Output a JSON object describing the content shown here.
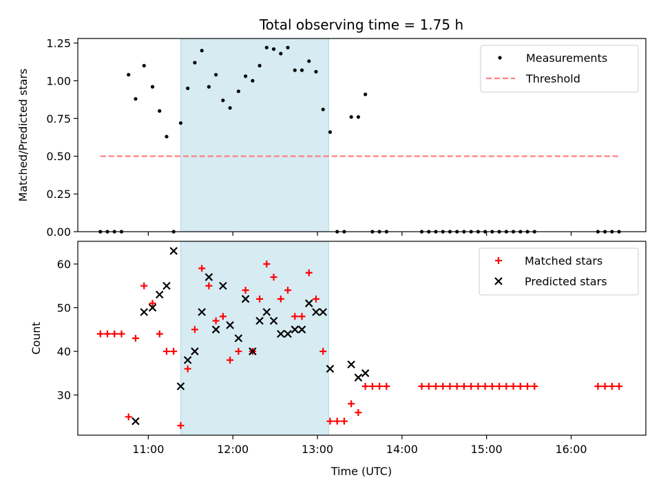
{
  "chart_data": {
    "title": "Total observing time = 1.75 h",
    "x_axis": {
      "label": "Time (UTC)",
      "range": [
        "10:10",
        "16:53"
      ],
      "ticks": [
        "11:00",
        "12:00",
        "13:00",
        "14:00",
        "15:00",
        "16:00"
      ]
    },
    "highlight": {
      "start": "11:23",
      "end": "13:08",
      "color": "#add8e6"
    },
    "panels": [
      {
        "type": "scatter",
        "ylabel": "Matched/Predicted stars",
        "ylim": [
          0,
          1.28
        ],
        "yticks": [
          "0.00",
          "0.25",
          "0.50",
          "0.75",
          "1.00",
          "1.25"
        ],
        "legend": {
          "position": "top-right"
        },
        "series": [
          {
            "name": "Measurements",
            "color": "#000000",
            "marker": "dot",
            "x": [
              "10:26",
              "10:31",
              "10:36",
              "10:41",
              "10:46",
              "10:51",
              "10:57",
              "11:03",
              "11:08",
              "11:13",
              "11:18",
              "11:23",
              "11:28",
              "11:33",
              "11:38",
              "11:43",
              "11:48",
              "11:53",
              "11:58",
              "12:04",
              "12:09",
              "12:14",
              "12:19",
              "12:24",
              "12:29",
              "12:34",
              "12:39",
              "12:44",
              "12:49",
              "12:54",
              "12:59",
              "13:04",
              "13:09",
              "13:14",
              "13:19",
              "13:24",
              "13:29",
              "13:34",
              "13:39",
              "13:44",
              "13:49",
              "14:14",
              "14:19",
              "14:24",
              "14:29",
              "14:34",
              "14:39",
              "14:44",
              "14:49",
              "14:54",
              "14:59",
              "15:04",
              "15:09",
              "15:14",
              "15:19",
              "15:24",
              "15:29",
              "15:34",
              "16:19",
              "16:24",
              "16:29",
              "16:34"
            ],
            "y": [
              0,
              0,
              0,
              0,
              1.04,
              0.88,
              1.1,
              0.96,
              0.8,
              0.63,
              0,
              0.72,
              0.95,
              1.12,
              1.2,
              0.96,
              1.04,
              0.87,
              0.82,
              0.93,
              1.03,
              1.0,
              1.1,
              1.22,
              1.21,
              1.18,
              1.22,
              1.07,
              1.07,
              1.13,
              1.06,
              0.81,
              0.66,
              0,
              0,
              0.76,
              0.76,
              0.91,
              0,
              0,
              0,
              0,
              0,
              0,
              0,
              0,
              0,
              0,
              0,
              0,
              0,
              0,
              0,
              0,
              0,
              0,
              0,
              0,
              0,
              0,
              0,
              0
            ]
          },
          {
            "name": "Threshold",
            "color": "#ff8080",
            "style": "dashed",
            "x": [
              "10:26",
              "16:34"
            ],
            "y": [
              0.5,
              0.5
            ]
          }
        ]
      },
      {
        "type": "scatter",
        "ylabel": "Count",
        "ylim": [
          20.8,
          65.2
        ],
        "yticks": [
          "30",
          "40",
          "50",
          "60"
        ],
        "legend": {
          "position": "top-right"
        },
        "series": [
          {
            "name": "Matched stars",
            "color": "#ff0000",
            "marker": "plus",
            "x": [
              "10:26",
              "10:31",
              "10:36",
              "10:41",
              "10:46",
              "10:51",
              "10:57",
              "11:03",
              "11:08",
              "11:13",
              "11:18",
              "11:23",
              "11:28",
              "11:33",
              "11:38",
              "11:43",
              "11:48",
              "11:53",
              "11:58",
              "12:04",
              "12:09",
              "12:14",
              "12:19",
              "12:24",
              "12:29",
              "12:34",
              "12:39",
              "12:44",
              "12:49",
              "12:54",
              "12:59",
              "13:04",
              "13:09",
              "13:14",
              "13:19",
              "13:24",
              "13:29",
              "13:34",
              "13:39",
              "13:44",
              "13:49",
              "14:14",
              "14:19",
              "14:24",
              "14:29",
              "14:34",
              "14:39",
              "14:44",
              "14:49",
              "14:54",
              "14:59",
              "15:04",
              "15:09",
              "15:14",
              "15:19",
              "15:24",
              "15:29",
              "15:34",
              "16:19",
              "16:24",
              "16:29",
              "16:34"
            ],
            "y": [
              44,
              44,
              44,
              44,
              25,
              43,
              55,
              51,
              44,
              40,
              40,
              23,
              36,
              45,
              59,
              55,
              47,
              48,
              38,
              40,
              54,
              40,
              52,
              60,
              57,
              52,
              54,
              48,
              48,
              58,
              52,
              40,
              24,
              24,
              24,
              28,
              26,
              32,
              32,
              32,
              32,
              32,
              32,
              32,
              32,
              32,
              32,
              32,
              32,
              32,
              32,
              32,
              32,
              32,
              32,
              32,
              32,
              32,
              32,
              32,
              32,
              32
            ]
          },
          {
            "name": "Predicted stars",
            "color": "#000000",
            "marker": "x",
            "x": [
              "10:51",
              "10:57",
              "11:03",
              "11:08",
              "11:13",
              "11:18",
              "11:23",
              "11:28",
              "11:33",
              "11:38",
              "11:43",
              "11:48",
              "11:53",
              "11:58",
              "12:04",
              "12:09",
              "12:14",
              "12:19",
              "12:24",
              "12:29",
              "12:34",
              "12:39",
              "12:44",
              "12:49",
              "12:54",
              "12:59",
              "13:04",
              "13:09",
              "13:24",
              "13:29",
              "13:34"
            ],
            "y": [
              24,
              49,
              50,
              53,
              55,
              63,
              32,
              38,
              40,
              49,
              57,
              45,
              55,
              46,
              43,
              52,
              40,
              47,
              49,
              47,
              44,
              44,
              45,
              45,
              51,
              49,
              49,
              36,
              37,
              34,
              35
            ]
          }
        ]
      }
    ]
  }
}
